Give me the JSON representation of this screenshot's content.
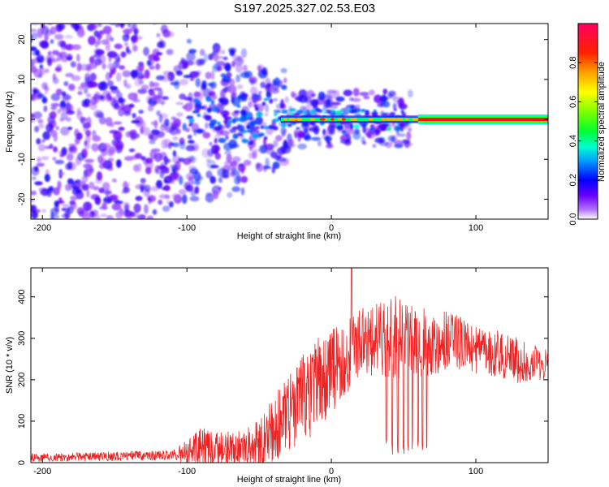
{
  "title": "S197.2025.327.02.53.E03",
  "colors": {
    "snr_line": "#ee2222",
    "track_purple": "#6a00ff",
    "track_core": "#ff1010",
    "background": "#ffffff"
  },
  "chart_data": [
    {
      "type": "heatmap",
      "name": "spectrogram",
      "xlabel": "Height of straight line (km)",
      "ylabel": "Frequency (Hz)",
      "xlim": [
        -208,
        150
      ],
      "ylim": [
        -25,
        24
      ],
      "xticks": [
        -200,
        -100,
        0,
        100
      ],
      "yticks": [
        -20,
        -10,
        0,
        10,
        20
      ],
      "colorbar": {
        "label": "Normalized spectral amplitude",
        "range": [
          0.0,
          1.0
        ],
        "ticks": [
          "0.0",
          "0.2",
          "0.4",
          "0.6",
          "0.8"
        ],
        "tick_values": [
          0.0,
          0.2,
          0.4,
          0.6,
          0.8
        ],
        "colormap": "hsv-rainbow"
      },
      "features": {
        "noise_region_km": [
          -208,
          -100
        ],
        "transition_region_km": [
          -100,
          55
        ],
        "signal_onset_km": -35,
        "tone_frequency_hz": 0,
        "strong_tone_region_km": [
          60,
          150
        ]
      }
    },
    {
      "type": "line",
      "name": "snr",
      "xlabel": "Height of straight line (km)",
      "ylabel": "SNR (10 * v/v)",
      "xlim": [
        -208,
        150
      ],
      "ylim": [
        0,
        470
      ],
      "xticks": [
        -200,
        -100,
        0,
        100
      ],
      "yticks": [
        0,
        100,
        200,
        300,
        400
      ],
      "envelope": {
        "x": [
          -208,
          -110,
          -100,
          -90,
          -80,
          -60,
          -50,
          -40,
          -30,
          -20,
          -10,
          0,
          10,
          20,
          30,
          40,
          50,
          60,
          70,
          80,
          90,
          100,
          110,
          120,
          130,
          140,
          150
        ],
        "base": [
          12,
          18,
          25,
          35,
          32,
          35,
          50,
          80,
          120,
          150,
          190,
          220,
          250,
          290,
          300,
          305,
          300,
          295,
          290,
          290,
          285,
          280,
          270,
          255,
          245,
          235,
          225
        ],
        "amplitude": [
          10,
          12,
          30,
          50,
          40,
          45,
          60,
          80,
          90,
          110,
          110,
          100,
          90,
          80,
          90,
          100,
          100,
          90,
          80,
          75,
          70,
          65,
          60,
          55,
          55,
          50,
          45
        ]
      },
      "peak": {
        "x": 14,
        "y": 470
      },
      "dropouts_km": [
        38,
        42,
        46,
        50,
        53,
        56,
        60,
        63,
        66
      ]
    }
  ]
}
